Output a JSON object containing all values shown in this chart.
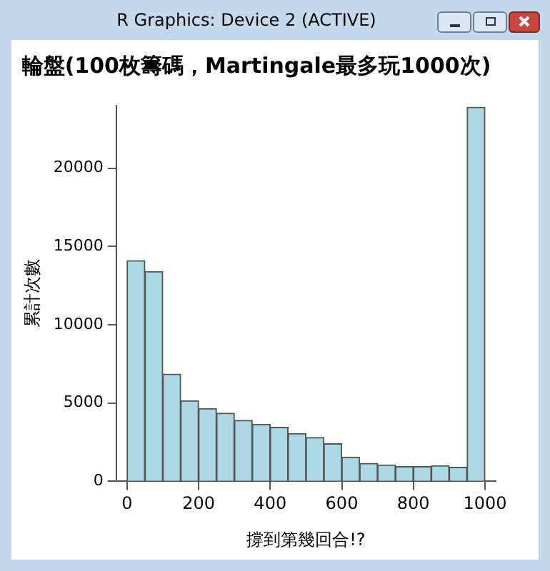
{
  "chart_data": {
    "type": "histogram",
    "title": "輪盤(100枚籌碼，Martingale最多玩1000次)",
    "xlabel": "撐到第幾回合!?",
    "ylabel": "累計次數",
    "annotations": [
      "R Graphics: Device 2 (ACTIVE)"
    ],
    "bins": [
      0,
      50,
      100,
      150,
      200,
      250,
      300,
      350,
      400,
      450,
      500,
      550,
      600,
      650,
      700,
      750,
      800,
      850,
      900,
      950,
      1000
    ],
    "values": [
      14100,
      13400,
      6850,
      5150,
      4650,
      4350,
      3900,
      3650,
      3450,
      3050,
      2800,
      2400,
      1550,
      1150,
      1050,
      950,
      950,
      1000,
      900,
      23900
    ],
    "color": "#add8e6",
    "xlim": [
      -30,
      1030
    ],
    "xticks": [
      0,
      200,
      400,
      600,
      800,
      1000
    ],
    "ylim": [
      0,
      24000
    ],
    "yticks": [
      0,
      5000,
      10000,
      15000,
      20000
    ],
    "grid": false,
    "legend": false
  }
}
